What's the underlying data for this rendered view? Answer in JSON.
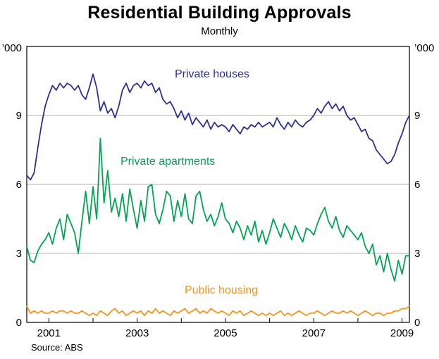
{
  "chart_data": {
    "type": "line",
    "title": "Residential Building Approvals",
    "subtitle": "Monthly",
    "unit_label": "’000",
    "source": "Source: ABS",
    "x_start": "2000-07",
    "x_end": "2009-03",
    "x_frequency": "monthly",
    "x_year_ticks": [
      2001,
      2003,
      2005,
      2007,
      2009
    ],
    "ylim": [
      0,
      12
    ],
    "yticks": [
      0,
      3,
      6,
      9
    ],
    "grid_yticks": [
      3,
      6,
      9
    ],
    "grid": true,
    "legend": "inline-labels",
    "frame_color": "#000000",
    "grid_color": "#b3b3b3",
    "series": [
      {
        "name": "Private houses",
        "color": "#2E3192",
        "values": [
          6.4,
          6.2,
          6.5,
          7.6,
          8.6,
          9.4,
          9.9,
          10.3,
          10.1,
          10.4,
          10.2,
          10.4,
          10.3,
          10.1,
          10.3,
          9.9,
          9.7,
          10.2,
          10.8,
          10.2,
          9.2,
          9.6,
          9.1,
          9.3,
          8.9,
          9.4,
          10.1,
          10.4,
          10.0,
          10.3,
          10.4,
          10.2,
          10.5,
          10.3,
          10.4,
          10.0,
          10.2,
          9.7,
          9.5,
          9.6,
          9.3,
          8.9,
          9.2,
          8.8,
          9.1,
          8.6,
          8.9,
          8.7,
          8.5,
          8.8,
          8.4,
          8.7,
          8.5,
          8.6,
          8.5,
          8.3,
          8.6,
          8.4,
          8.2,
          8.5,
          8.4,
          8.6,
          8.5,
          8.7,
          8.5,
          8.6,
          8.7,
          8.5,
          8.9,
          8.6,
          8.4,
          8.7,
          8.5,
          8.8,
          8.6,
          8.5,
          8.7,
          8.8,
          9.0,
          9.3,
          9.1,
          9.4,
          9.6,
          9.3,
          9.5,
          9.2,
          9.4,
          9.0,
          8.8,
          8.9,
          8.6,
          8.3,
          8.4,
          8.0,
          7.9,
          7.5,
          7.3,
          7.1,
          6.9,
          7.0,
          7.3,
          7.8,
          8.2,
          8.7,
          9.0
        ]
      },
      {
        "name": "Private apartments",
        "color": "#00A651",
        "values": [
          3.3,
          2.7,
          2.6,
          3.1,
          3.4,
          3.6,
          3.9,
          3.4,
          4.1,
          4.5,
          3.6,
          4.7,
          4.3,
          3.9,
          3.0,
          4.4,
          5.7,
          4.3,
          5.9,
          4.5,
          8.0,
          5.2,
          6.6,
          4.8,
          5.4,
          4.6,
          5.6,
          4.4,
          5.8,
          4.9,
          4.1,
          5.3,
          4.4,
          5.9,
          6.0,
          4.7,
          4.3,
          4.9,
          5.7,
          5.5,
          4.4,
          5.3,
          4.6,
          5.6,
          4.5,
          4.3,
          5.5,
          5.7,
          4.9,
          4.4,
          4.7,
          4.2,
          4.6,
          5.2,
          4.5,
          4.3,
          3.9,
          4.4,
          4.1,
          3.6,
          4.2,
          3.8,
          4.4,
          3.5,
          4.0,
          3.4,
          3.9,
          4.5,
          4.1,
          3.7,
          4.3,
          4.0,
          3.6,
          4.2,
          3.8,
          3.5,
          4.1,
          4.0,
          3.8,
          4.3,
          4.7,
          5.0,
          4.4,
          4.1,
          4.6,
          4.0,
          3.7,
          4.2,
          4.0,
          3.8,
          3.6,
          3.9,
          3.3,
          3.0,
          3.4,
          2.5,
          2.9,
          2.2,
          3.0,
          2.3,
          1.8,
          2.7,
          2.1,
          2.9,
          2.9
        ]
      },
      {
        "name": "Public housing",
        "color": "#F7941D",
        "values": [
          0.7,
          0.4,
          0.5,
          0.4,
          0.5,
          0.4,
          0.4,
          0.5,
          0.4,
          0.5,
          0.5,
          0.4,
          0.5,
          0.4,
          0.4,
          0.5,
          0.4,
          0.3,
          0.4,
          0.3,
          0.5,
          0.4,
          0.3,
          0.5,
          0.6,
          0.4,
          0.5,
          0.3,
          0.4,
          0.5,
          0.4,
          0.5,
          0.3,
          0.5,
          0.4,
          0.6,
          0.4,
          0.5,
          0.4,
          0.3,
          0.5,
          0.4,
          0.5,
          0.6,
          0.4,
          0.5,
          0.6,
          0.4,
          0.5,
          0.4,
          0.6,
          0.5,
          0.4,
          0.5,
          0.4,
          0.3,
          0.5,
          0.4,
          0.5,
          0.3,
          0.4,
          0.5,
          0.4,
          0.3,
          0.4,
          0.3,
          0.4,
          0.3,
          0.4,
          0.5,
          0.3,
          0.4,
          0.3,
          0.4,
          0.5,
          0.4,
          0.3,
          0.4,
          0.4,
          0.5,
          0.4,
          0.3,
          0.4,
          0.5,
          0.4,
          0.4,
          0.5,
          0.4,
          0.5,
          0.4,
          0.3,
          0.4,
          0.5,
          0.4,
          0.3,
          0.4,
          0.4,
          0.3,
          0.4,
          0.4,
          0.5,
          0.5,
          0.6,
          0.6,
          0.7
        ]
      }
    ]
  }
}
